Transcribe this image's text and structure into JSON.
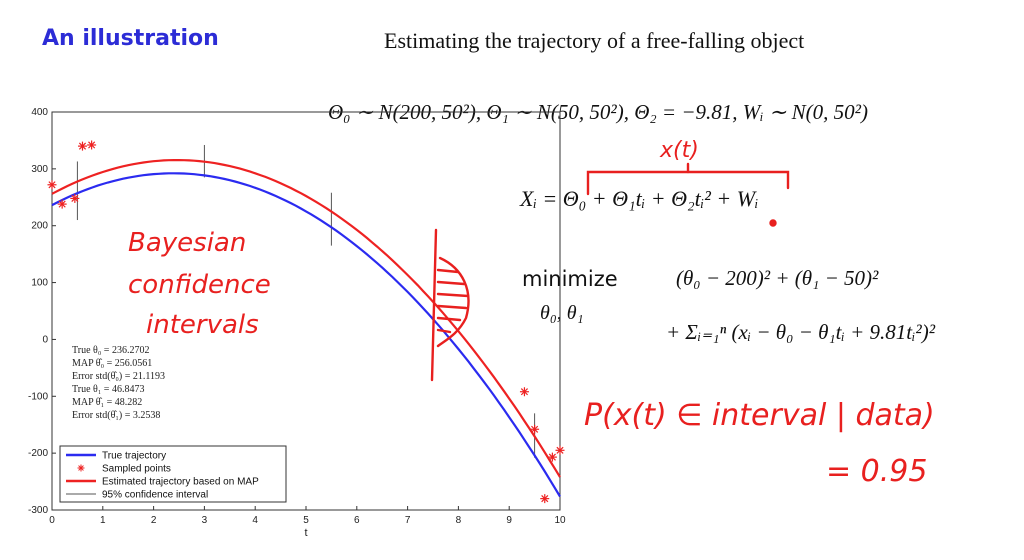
{
  "header": {
    "heading": "An illustration",
    "title": "Estimating the trajectory of a free-falling object"
  },
  "equations": {
    "priors": "Θ₀ ∼ N(200, 50²), Θ₁ ∼ N(50, 50²), Θ₂ = −9.81, Wᵢ ∼ N(0, 50²)",
    "model": "Xᵢ = Θ₀ + Θ₁tᵢ + Θ₂tᵢ² + Wᵢ",
    "minimize_word": "minimize",
    "minimize_vars": "θ₀, θ₁",
    "objective_1": "(θ₀ − 200)² + (θ₁ − 50)²",
    "objective_2": "+ Σᵢ₌₁ⁿ (xᵢ − θ₀ − θ₁tᵢ + 9.81tᵢ²)²"
  },
  "annotations": {
    "xt": "x(t)",
    "bayesian": [
      "Bayesian",
      "confidence",
      "intervals"
    ],
    "probability": "P(x(t) ∈ interval | data)",
    "equals": "= 0.95"
  },
  "colors": {
    "true": "#2b2bf0",
    "map": "#ee2222",
    "ci": "#555555",
    "heading": "#2c2cd6"
  },
  "chart_data": {
    "type": "line",
    "xlabel": "t",
    "ylabel": "",
    "xlim": [
      0,
      10
    ],
    "ylim": [
      -300,
      400
    ],
    "xticks": [
      0,
      1,
      2,
      3,
      4,
      5,
      6,
      7,
      8,
      9,
      10
    ],
    "yticks": [
      400,
      300,
      200,
      100,
      0,
      -100,
      -200,
      -300
    ],
    "series": [
      {
        "name": "True trajectory",
        "color": "#2b2bf0",
        "theta0": 236.2702,
        "theta1": 46.8473,
        "theta2": -9.81
      },
      {
        "name": "Estimated trajectory based on MAP",
        "color": "#ee2222",
        "theta0": 256.0561,
        "theta1": 48.282,
        "theta2": -9.81
      }
    ],
    "sampled_points": {
      "name": "Sampled points",
      "points": [
        [
          0.0,
          272
        ],
        [
          0.2,
          238
        ],
        [
          0.45,
          248
        ],
        [
          0.6,
          340
        ],
        [
          0.78,
          342
        ],
        [
          9.3,
          -92
        ],
        [
          9.5,
          -158
        ],
        [
          9.85,
          -207
        ],
        [
          10.0,
          -195
        ],
        [
          9.7,
          -280
        ]
      ]
    },
    "confidence_intervals": {
      "name": "95% confidence interval",
      "segments": [
        [
          0.5,
          210,
          313
        ],
        [
          3.0,
          285,
          342
        ],
        [
          5.5,
          165,
          258
        ],
        [
          9.5,
          -208,
          -130
        ]
      ]
    },
    "stats": [
      "True θ₀ = 236.2702",
      "MAP θ̂₀ = 256.0561",
      "Error std(θ̂₀) = 21.1193",
      "True θ₁ = 46.8473",
      "MAP θ̂₁ = 48.282",
      "Error std(θ̂₁) = 3.2538"
    ]
  }
}
